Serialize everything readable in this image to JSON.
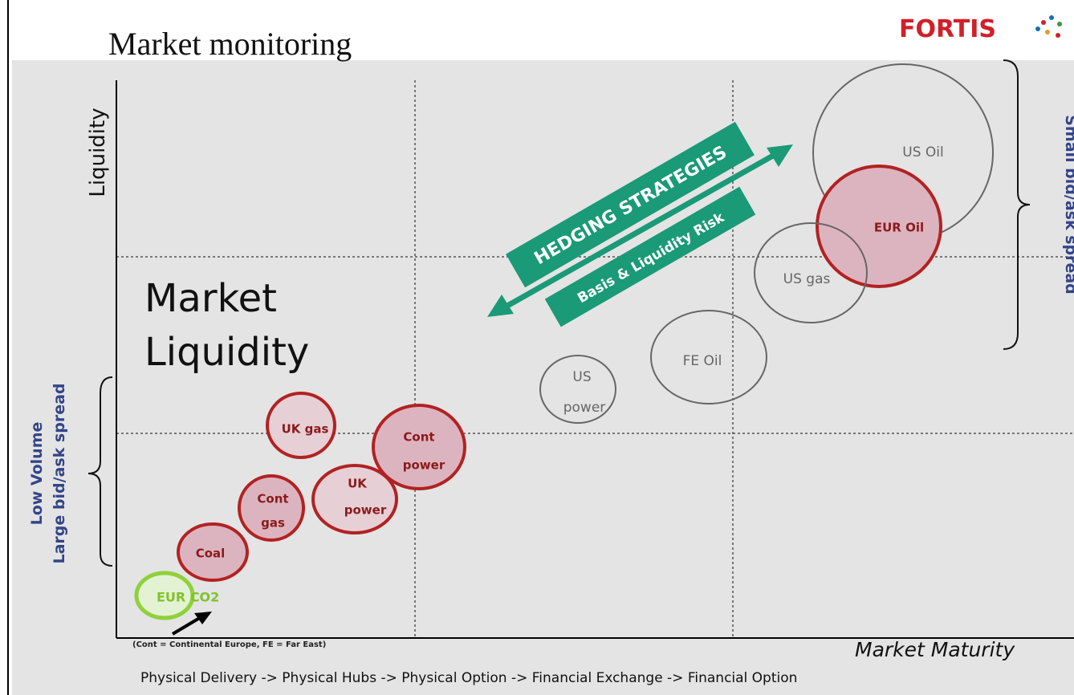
{
  "header": {
    "title": "Market monitoring",
    "logo": "FORTIS"
  },
  "axes": {
    "y_label": "Liquidity",
    "x_label": "Market Maturity",
    "left_bracket": [
      "Low Volume",
      "Large bid/ask spread"
    ],
    "right_bracket": "Small bid/ask spread"
  },
  "region_label": [
    "Market",
    "Liquidity"
  ],
  "banners": {
    "upper": "HEDGING STRATEGIES",
    "lower": "Basis & Liquidity Risk"
  },
  "nodes": [
    {
      "label": [
        "US Oil"
      ]
    },
    {
      "label": [
        "EUR Oil"
      ]
    },
    {
      "label": [
        "US gas"
      ]
    },
    {
      "label": [
        "FE Oil"
      ]
    },
    {
      "label": [
        "US",
        "power"
      ]
    },
    {
      "label": [
        "UK gas"
      ]
    },
    {
      "label": [
        "Cont",
        "power"
      ]
    },
    {
      "label": [
        "UK",
        "power"
      ]
    },
    {
      "label": [
        "Cont",
        "gas"
      ]
    },
    {
      "label": [
        "Coal"
      ]
    },
    {
      "label": [
        "EUR CO2"
      ]
    }
  ],
  "footnote": "(Cont = Continental Europe, FE = Far East)",
  "progression": "Physical Delivery -> Physical Hubs -> Physical Option -> Financial Exchange -> Financial Option"
}
